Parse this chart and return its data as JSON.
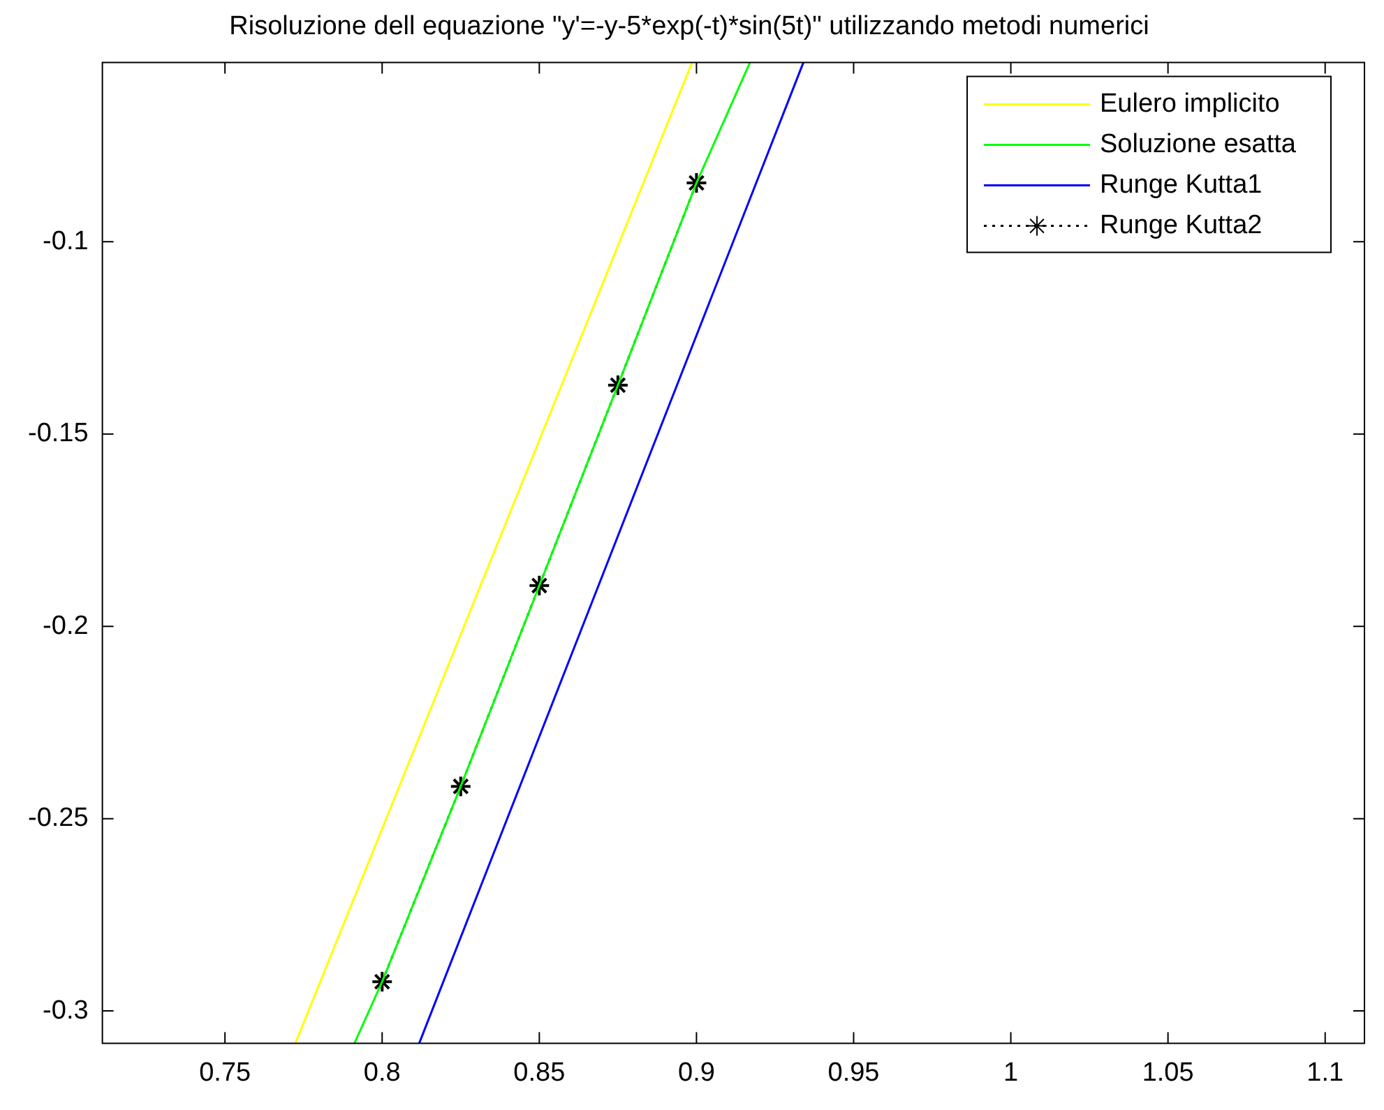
{
  "chart_data": {
    "type": "line",
    "title": "Risoluzione dell equazione \"y'=-y-5*exp(-t)*sin(5t)\" utilizzando metodi numerici",
    "xlim": [
      0.711,
      1.1125
    ],
    "xticks": [
      0.75,
      0.8,
      0.85,
      0.9,
      0.95,
      1,
      1.05,
      1.1
    ],
    "ylim": [
      -0.3084,
      -0.0534
    ],
    "yticks": [
      -0.3,
      -0.25,
      -0.2,
      -0.15,
      -0.1
    ],
    "grid": false,
    "legend": "top right",
    "series": [
      {
        "name": "Eulero implicito",
        "color": "#ffff00",
        "x": [
          0.7724,
          0.8986
        ],
        "values": [
          -0.3084,
          -0.0534
        ]
      },
      {
        "name": "Soluzione esatta",
        "color": "#00ff00",
        "x": [
          0.7912,
          0.8,
          0.825,
          0.85,
          0.875,
          0.9,
          0.917
        ],
        "values": [
          -0.3084,
          -0.2924,
          -0.2416,
          -0.1894,
          -0.1373,
          -0.0847,
          -0.0534
        ]
      },
      {
        "name": "Runge Kutta1",
        "color": "#0000ff",
        "x": [
          0.8118,
          0.934
        ],
        "values": [
          -0.3084,
          -0.0534
        ]
      },
      {
        "name": "Runge Kutta2",
        "color": "#000000",
        "x": [
          0.8,
          0.825,
          0.85,
          0.875,
          0.9
        ],
        "values": [
          -0.2924,
          -0.2416,
          -0.1894,
          -0.1373,
          -0.0847
        ],
        "marker": "cross",
        "line_style": "dotted"
      }
    ]
  }
}
